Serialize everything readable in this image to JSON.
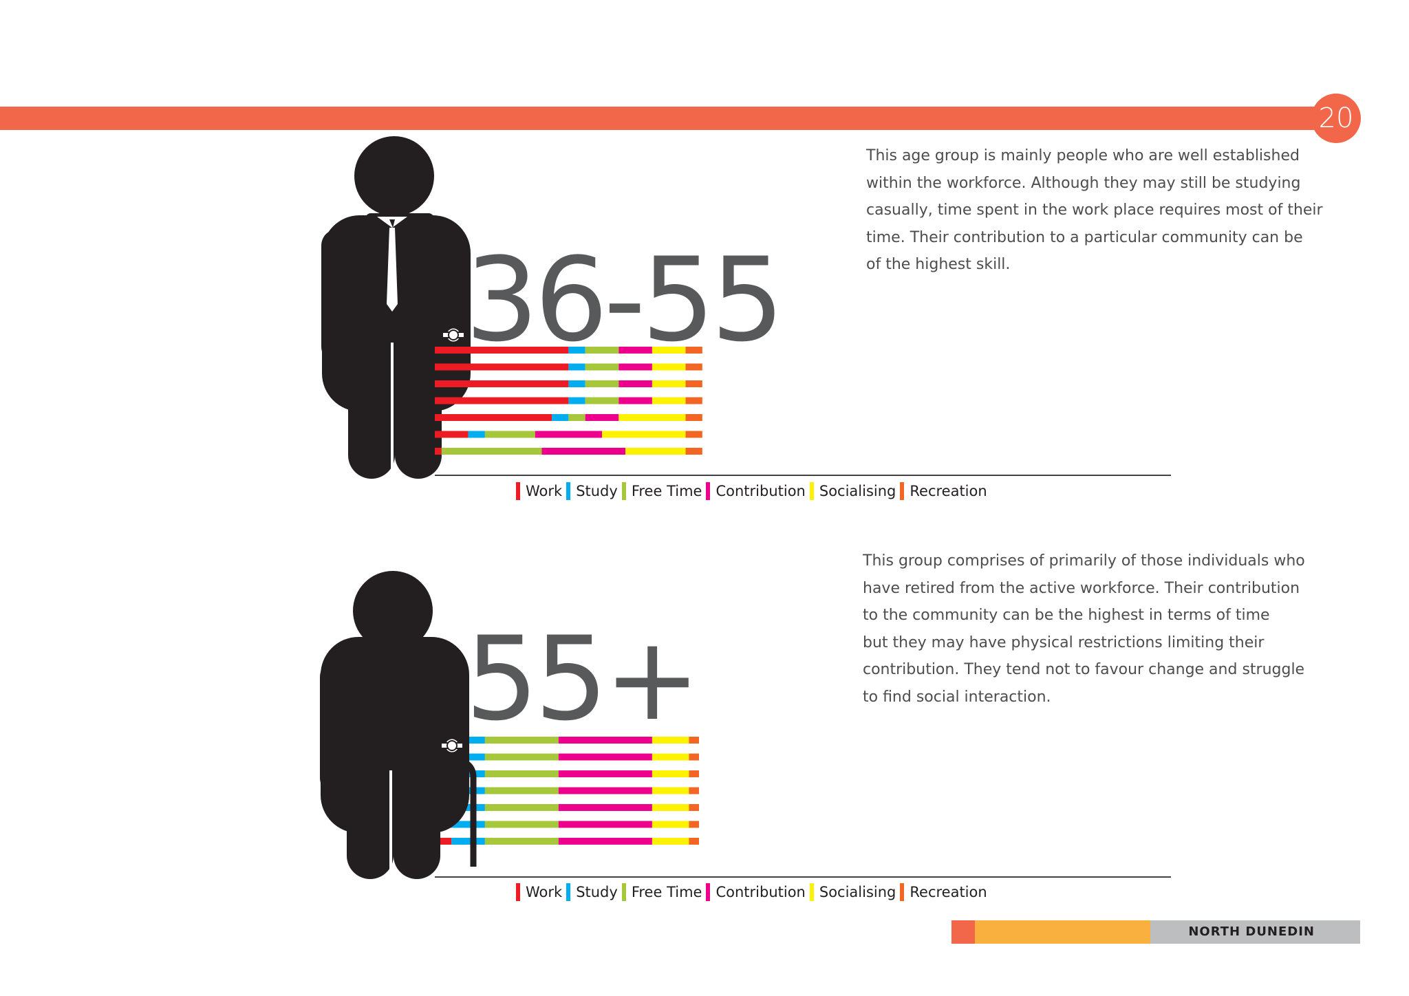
{
  "page_number": "20",
  "footer": {
    "label": "NORTH DUNEDIN"
  },
  "colors": {
    "accent": "#f26649",
    "work": "#ed1c24",
    "study": "#00aeef",
    "free_time": "#a6c739",
    "contribution": "#ec008c",
    "socialising": "#fff200",
    "recreation": "#f26522",
    "figure": "#231f20",
    "footer_orange": "#f9b03e",
    "footer_gray": "#bcbec0"
  },
  "sections": [
    {
      "age_label": "36-55",
      "description": [
        "This age group is mainly people who are well established",
        "within the workforce. Although they may still be studying",
        "casually, time spent in the work place requires most of their",
        "time. Their contribution to a particular community can be",
        "of the highest skill."
      ],
      "figure_icon": "businessman-icon"
    },
    {
      "age_label": "55+",
      "description": [
        "This group comprises of primarily of those individuals who",
        "have retired from the active workforce. Their contribution",
        "to the community can be the highest in terms of time",
        "but they may have physical restrictions limiting their",
        "contribution. They tend not to favour change and struggle",
        "to find social interaction."
      ],
      "figure_icon": "elderly-man-with-cane-icon"
    }
  ],
  "chart_data": [
    {
      "type": "bar",
      "stacked": true,
      "orientation": "horizontal",
      "categories": [
        "",
        "",
        "",
        "",
        "",
        "",
        ""
      ],
      "legend": [
        "Work",
        "Study",
        "Free Time",
        "Contribution",
        "Socialising",
        "Recreation"
      ],
      "legend_placement": "bottom",
      "series": [
        {
          "name": "Work",
          "values": [
            40,
            40,
            40,
            40,
            35,
            10,
            2
          ]
        },
        {
          "name": "Study",
          "values": [
            5,
            5,
            5,
            5,
            5,
            5,
            0
          ]
        },
        {
          "name": "Free Time",
          "values": [
            10,
            10,
            10,
            10,
            5,
            15,
            30
          ]
        },
        {
          "name": "Contribution",
          "values": [
            10,
            10,
            10,
            10,
            10,
            20,
            25
          ]
        },
        {
          "name": "Socialising",
          "values": [
            10,
            10,
            10,
            10,
            20,
            25,
            18
          ]
        },
        {
          "name": "Recreation",
          "values": [
            5,
            5,
            5,
            5,
            5,
            5,
            5
          ]
        }
      ]
    },
    {
      "type": "bar",
      "stacked": true,
      "orientation": "horizontal",
      "categories": [
        "",
        "",
        "",
        "",
        "",
        "",
        ""
      ],
      "legend": [
        "Work",
        "Study",
        "Free Time",
        "Contribution",
        "Socialising",
        "Recreation"
      ],
      "legend_placement": "bottom",
      "series": [
        {
          "name": "Work",
          "values": [
            5,
            5,
            5,
            5,
            5,
            5,
            5
          ]
        },
        {
          "name": "Study",
          "values": [
            10,
            10,
            10,
            10,
            10,
            10,
            10
          ]
        },
        {
          "name": "Free Time",
          "values": [
            22,
            22,
            22,
            22,
            22,
            22,
            22
          ]
        },
        {
          "name": "Contribution",
          "values": [
            28,
            28,
            28,
            28,
            28,
            28,
            28
          ]
        },
        {
          "name": "Socialising",
          "values": [
            11,
            11,
            11,
            11,
            11,
            11,
            11
          ]
        },
        {
          "name": "Recreation",
          "values": [
            3,
            3,
            3,
            3,
            3,
            3,
            3
          ]
        }
      ]
    }
  ]
}
